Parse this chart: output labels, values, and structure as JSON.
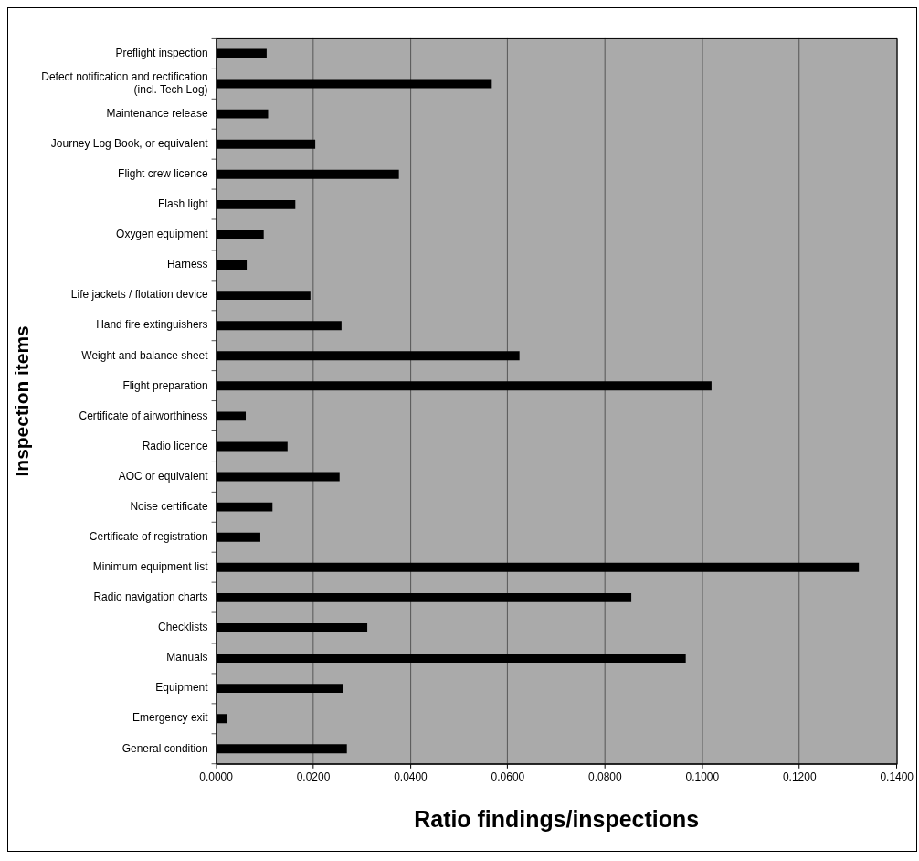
{
  "chart_data": {
    "type": "bar",
    "orientation": "horizontal",
    "xlabel": "Ratio findings/inspections",
    "ylabel": "Inspection items",
    "categories": [
      "Preflight inspection",
      "Defect notification and rectification (incl. Tech Log)",
      "Maintenance release",
      "Journey Log Book, or equivalent",
      "Flight crew licence",
      "Flash light",
      "Oxygen equipment",
      "Harness",
      "Life jackets / flotation device",
      "Hand fire extinguishers",
      "Weight and balance sheet",
      "Flight preparation",
      "Certificate of airworthiness",
      "Radio licence",
      "AOC or equivalent",
      "Noise certificate",
      "Certificate of registration",
      "Minimum equipment list",
      "Radio navigation charts",
      "Checklists",
      "Manuals",
      "Equipment",
      "Emergency exit",
      "General condition"
    ],
    "values": [
      0.0104,
      0.0567,
      0.0107,
      0.0204,
      0.0376,
      0.0163,
      0.0098,
      0.0063,
      0.0194,
      0.0258,
      0.0624,
      0.1019,
      0.0061,
      0.0147,
      0.0254,
      0.0116,
      0.0091,
      0.1322,
      0.0854,
      0.0311,
      0.0966,
      0.0261,
      0.0022,
      0.0269
    ],
    "color": "#000000",
    "xlim": [
      0,
      0.14
    ],
    "xticks": [
      {
        "value": 0,
        "label": "0.0000"
      },
      {
        "value": 0.02,
        "label": "0.0200"
      },
      {
        "value": 0.04,
        "label": "0.0400"
      },
      {
        "value": 0.06,
        "label": "0.0600"
      },
      {
        "value": 0.08,
        "label": "0.0800"
      },
      {
        "value": 0.1,
        "label": "0.1000"
      },
      {
        "value": 0.12,
        "label": "0.1200"
      },
      {
        "value": 0.14,
        "label": "0.1400"
      }
    ],
    "grid": "x",
    "legend": false
  }
}
